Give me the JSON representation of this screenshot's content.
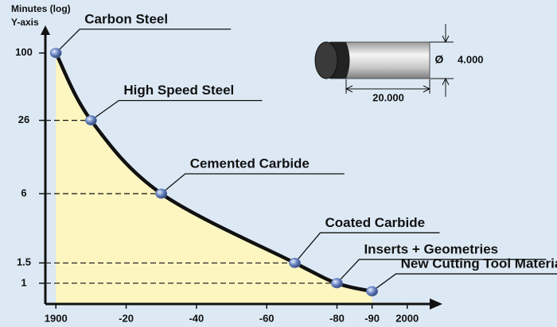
{
  "chart_data": {
    "type": "line",
    "ylabel_lines": [
      "Minutes (log)",
      "Y-axis"
    ],
    "x": [
      1900,
      1910,
      1930,
      1968,
      1980,
      1990
    ],
    "point_labels": [
      "Carbon Steel",
      "High Speed Steel",
      "Cemented Carbide",
      "Coated Carbide",
      "Inserts + Geometries",
      "New Cutting Tool Materials"
    ],
    "values": [
      100,
      26,
      6,
      1.5,
      1,
      0.85
    ],
    "color": "#111111",
    "fill": "#fdf6c0",
    "point_color": "#5b78b8",
    "log_y": true,
    "drop_lines": true,
    "xlim": [
      1897,
      2003
    ],
    "ylim": [
      0.66,
      153
    ],
    "xticks": [
      1900,
      {
        "value": 1920,
        "label": "-20"
      },
      {
        "value": 1940,
        "label": "-40"
      },
      {
        "value": 1960,
        "label": "-60"
      },
      {
        "value": 1980,
        "label": "-80"
      },
      {
        "value": 1990,
        "label": "-90"
      },
      2000
    ],
    "yticks": [
      1,
      1.5,
      6,
      26,
      100
    ]
  },
  "diagram": {
    "diameter_symbol": "Ø",
    "diameter": "4.000",
    "length": "20.000"
  }
}
